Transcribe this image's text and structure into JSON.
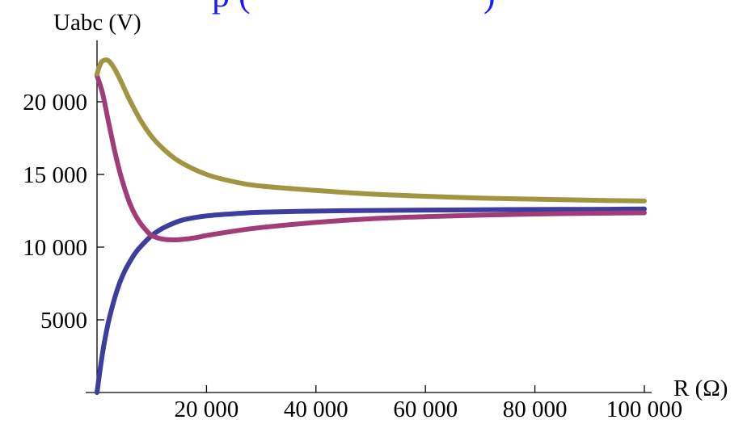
{
  "header_fragment": "p (",
  "header_fragment_right": ")",
  "chart_data": {
    "type": "line",
    "xlabel": "R (Ω)",
    "ylabel": "Uabc (V)",
    "xlim": [
      0,
      100000
    ],
    "ylim": [
      0,
      22500
    ],
    "x_ticks": [
      20000,
      40000,
      60000,
      80000,
      100000
    ],
    "x_tick_labels": [
      "20 000",
      "40 000",
      "60 000",
      "80 000",
      "100 000"
    ],
    "y_ticks": [
      5000,
      10000,
      15000,
      20000
    ],
    "y_tick_labels": [
      "5000",
      "10 000",
      "15 000",
      "20 000"
    ],
    "grid": false,
    "series": [
      {
        "color": "#3d3d9e",
        "x": [
          0,
          1000,
          2000,
          3000,
          4000,
          5000,
          6000,
          7000,
          8000,
          10000,
          12000,
          14000,
          16000,
          20000,
          25000,
          30000,
          40000,
          50000,
          60000,
          70000,
          80000,
          90000,
          100000
        ],
        "values": [
          0,
          2700,
          4700,
          6200,
          7400,
          8300,
          9000,
          9600,
          10050,
          10800,
          11300,
          11650,
          11900,
          12150,
          12300,
          12400,
          12480,
          12520,
          12550,
          12570,
          12590,
          12600,
          12620
        ]
      },
      {
        "color": "#a03c78",
        "x": [
          0,
          1000,
          2000,
          3000,
          4000,
          5000,
          6000,
          7000,
          8000,
          9000,
          10000,
          12000,
          14000,
          16000,
          18000,
          20000,
          25000,
          30000,
          40000,
          50000,
          60000,
          70000,
          80000,
          90000,
          100000
        ],
        "values": [
          21800,
          20600,
          18800,
          17000,
          15400,
          14100,
          13000,
          12200,
          11600,
          11150,
          10800,
          10550,
          10500,
          10550,
          10650,
          10800,
          11100,
          11350,
          11700,
          11950,
          12100,
          12200,
          12280,
          12330,
          12360
        ]
      },
      {
        "color": "#a09641",
        "x": [
          0,
          500,
          1000,
          2000,
          3000,
          4000,
          5000,
          6000,
          8000,
          10000,
          12000,
          15000,
          20000,
          25000,
          30000,
          40000,
          50000,
          60000,
          70000,
          80000,
          90000,
          100000
        ],
        "values": [
          21900,
          22500,
          22800,
          22850,
          22400,
          21700,
          20900,
          20100,
          18700,
          17600,
          16800,
          15900,
          15000,
          14500,
          14200,
          13900,
          13650,
          13500,
          13380,
          13300,
          13230,
          13170
        ]
      }
    ]
  }
}
